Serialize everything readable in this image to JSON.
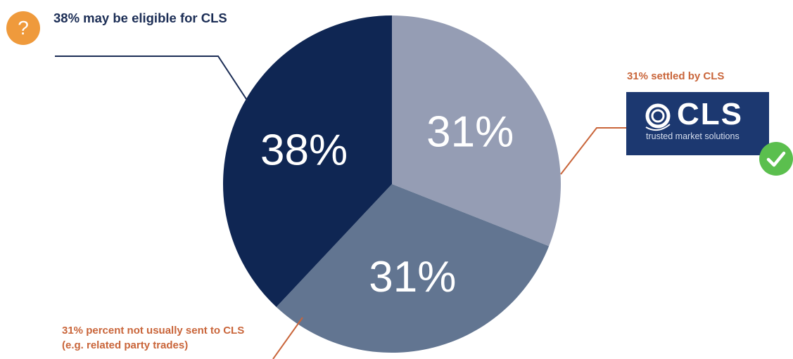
{
  "chart_data": {
    "type": "pie",
    "slices": [
      {
        "label": "31%",
        "value": 31,
        "color": "#959db4"
      },
      {
        "label": "31%",
        "value": 31,
        "color": "#627591"
      },
      {
        "label": "38%",
        "value": 38,
        "color": "#0f2653"
      }
    ],
    "annotations": {
      "eligible": "38% may be eligible for CLS",
      "settled": "31% settled by CLS",
      "not_sent_line1": "31% percent not usually sent to CLS",
      "not_sent_line2": "(e.g. related party trades)"
    }
  },
  "logo": {
    "text": "CLS",
    "tagline": "trusted market solutions",
    "background": "#1c3870"
  },
  "icons": {
    "question": "question-icon",
    "check": "checkmark-icon"
  },
  "colors": {
    "annotation_orange": "#c9653a",
    "annotation_navy": "#1b2d55",
    "badge_orange": "#ef9a3c",
    "check_green": "#5bbf4e"
  }
}
